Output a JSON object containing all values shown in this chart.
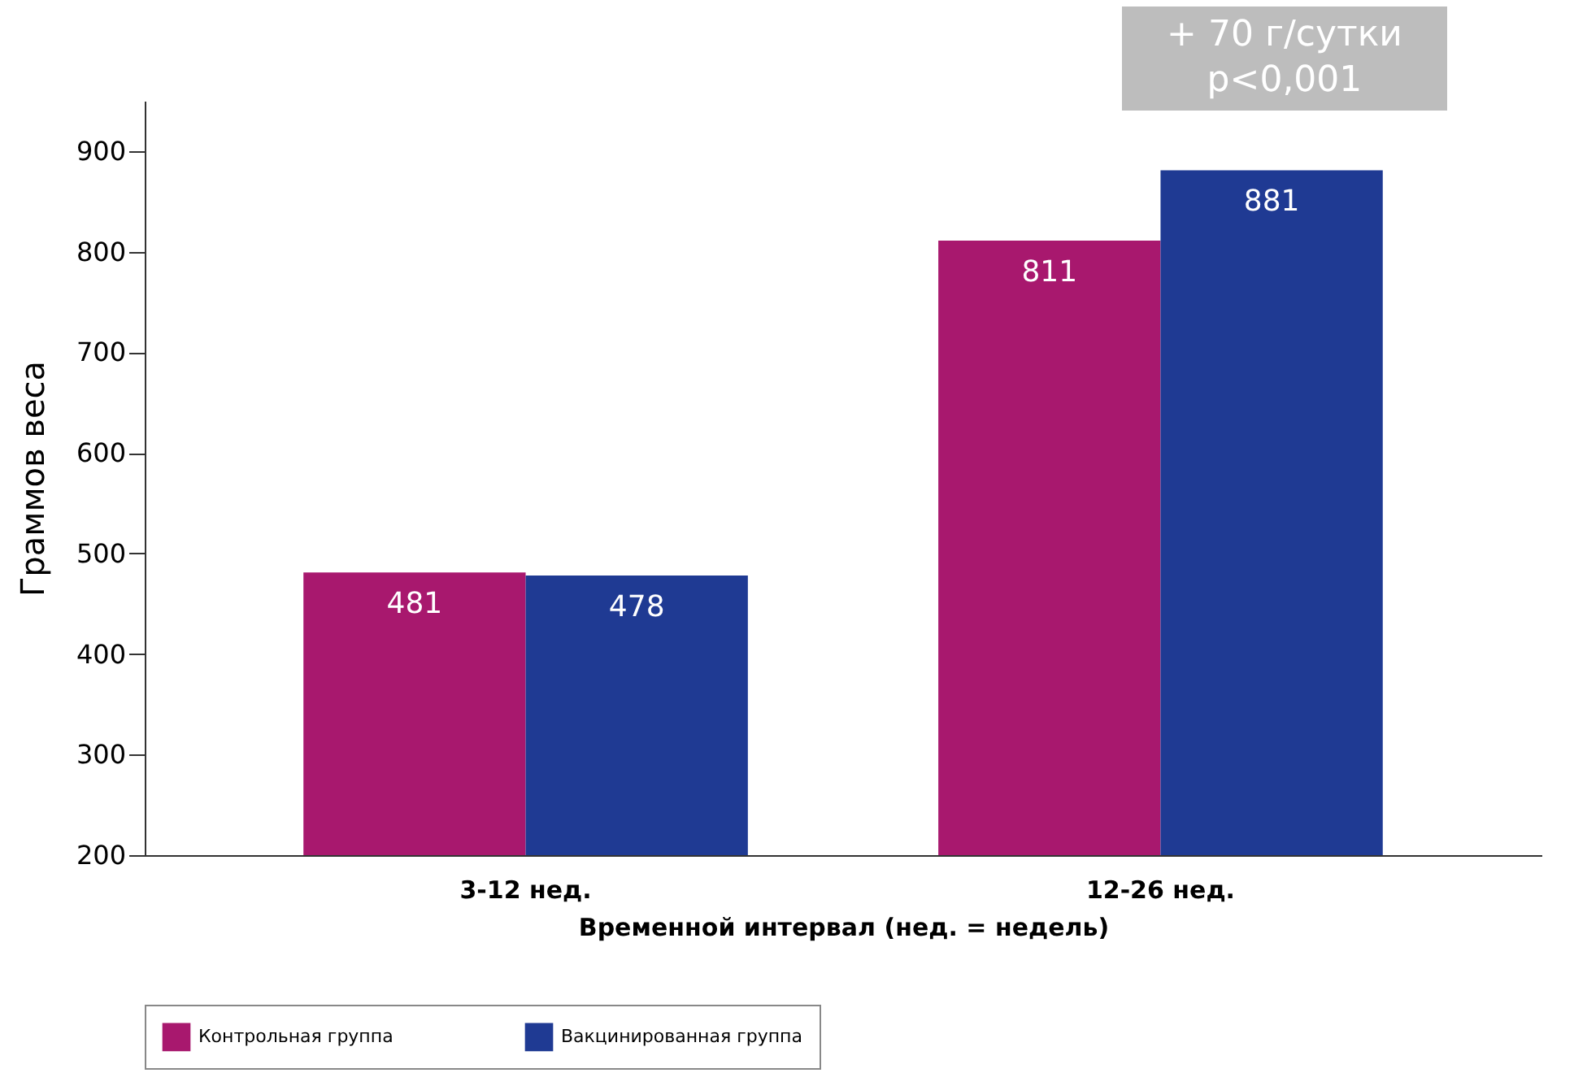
{
  "chart_data": {
    "type": "bar",
    "xlabel": "Временной интервал (нед. = недель)",
    "ylabel": "Граммов веса",
    "categories": [
      "3-12 нед.",
      "12-26 нед."
    ],
    "series": [
      {
        "name": "Контрольная группа",
        "color": "#a8186e",
        "values": [
          481,
          811
        ]
      },
      {
        "name": "Вакцинированная группа",
        "color": "#1f3a93",
        "values": [
          478,
          881
        ]
      }
    ],
    "ylim": [
      200,
      950
    ],
    "yticks": [
      200,
      300,
      400,
      500,
      600,
      700,
      800,
      900
    ],
    "grid": false,
    "legend": "bottom",
    "data_labels": true,
    "annotations": [
      "+ 70 г/сутки\np<0,001"
    ]
  }
}
